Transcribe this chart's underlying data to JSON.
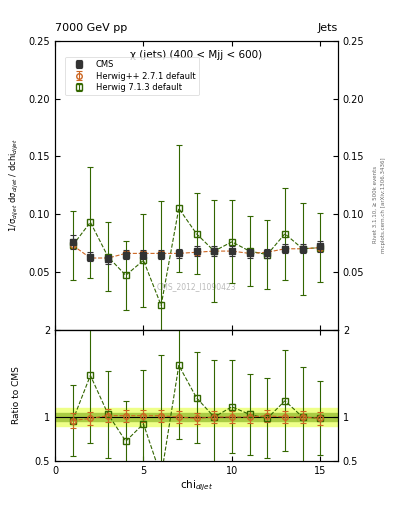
{
  "title_top": "7000 GeV pp",
  "title_right": "Jets",
  "plot_title": "χ (jets) (400 < Mjj < 600)",
  "watermark": "CMS_2012_I1090423",
  "ylabel_main": "1/σ$_{dijet}$ dσ$_{dijet}$ / dchi$_{dijet}$",
  "ylabel_ratio": "Ratio to CMS",
  "xlabel": "chi$_{dijet}$",
  "right_label_main": "Rivet 3.1.10, ≥ 500k events",
  "right_label_sub": "mcplots.cern.ch [arXiv:1306.3436]",
  "cms_x": [
    1,
    2,
    3,
    4,
    5,
    6,
    7,
    8,
    9,
    10,
    11,
    12,
    13,
    14,
    15
  ],
  "cms_y": [
    0.076,
    0.063,
    0.061,
    0.065,
    0.065,
    0.065,
    0.066,
    0.068,
    0.068,
    0.068,
    0.066,
    0.066,
    0.07,
    0.07,
    0.072
  ],
  "cms_yerr": [
    0.006,
    0.004,
    0.004,
    0.004,
    0.004,
    0.004,
    0.004,
    0.004,
    0.004,
    0.004,
    0.004,
    0.004,
    0.004,
    0.004,
    0.005
  ],
  "hpp_x": [
    1,
    2,
    3,
    4,
    5,
    6,
    7,
    8,
    9,
    10,
    11,
    12,
    13,
    14,
    15
  ],
  "hpp_y": [
    0.073,
    0.062,
    0.062,
    0.066,
    0.066,
    0.066,
    0.066,
    0.067,
    0.068,
    0.068,
    0.066,
    0.067,
    0.07,
    0.07,
    0.071
  ],
  "hpp_yerr": [
    0.002,
    0.002,
    0.002,
    0.002,
    0.002,
    0.002,
    0.002,
    0.002,
    0.002,
    0.002,
    0.002,
    0.002,
    0.002,
    0.002,
    0.002
  ],
  "h713_x": [
    1,
    2,
    3,
    4,
    5,
    6,
    7,
    8,
    9,
    10,
    11,
    12,
    13,
    14,
    15
  ],
  "h713_y": [
    0.073,
    0.093,
    0.063,
    0.047,
    0.06,
    0.021,
    0.105,
    0.083,
    0.068,
    0.076,
    0.068,
    0.065,
    0.083,
    0.07,
    0.071
  ],
  "h713_yerr": [
    0.03,
    0.048,
    0.03,
    0.03,
    0.04,
    0.09,
    0.055,
    0.035,
    0.044,
    0.036,
    0.03,
    0.03,
    0.04,
    0.04,
    0.03
  ],
  "ylim_main": [
    0.0,
    0.25
  ],
  "ylim_ratio": [
    0.5,
    2.0
  ],
  "xlim": [
    0,
    16
  ],
  "cms_color": "#333333",
  "hpp_color": "#cc6622",
  "h713_color": "#336600",
  "ratio_band_inner_color": "#aacc44",
  "ratio_band_outer_color": "#eeff88",
  "ratio_band_inner": 0.05,
  "ratio_band_outer": 0.1,
  "main_yticks": [
    0.05,
    0.1,
    0.15,
    0.2,
    0.25
  ],
  "main_yticklabels": [
    "0.05",
    "0.10",
    "0.15",
    "0.20",
    "0.25"
  ],
  "ratio_yticks": [
    0.5,
    1.0,
    2.0
  ],
  "ratio_yticklabels": [
    "0.5",
    "1",
    "2"
  ],
  "xticks": [
    0,
    5,
    10,
    15
  ]
}
